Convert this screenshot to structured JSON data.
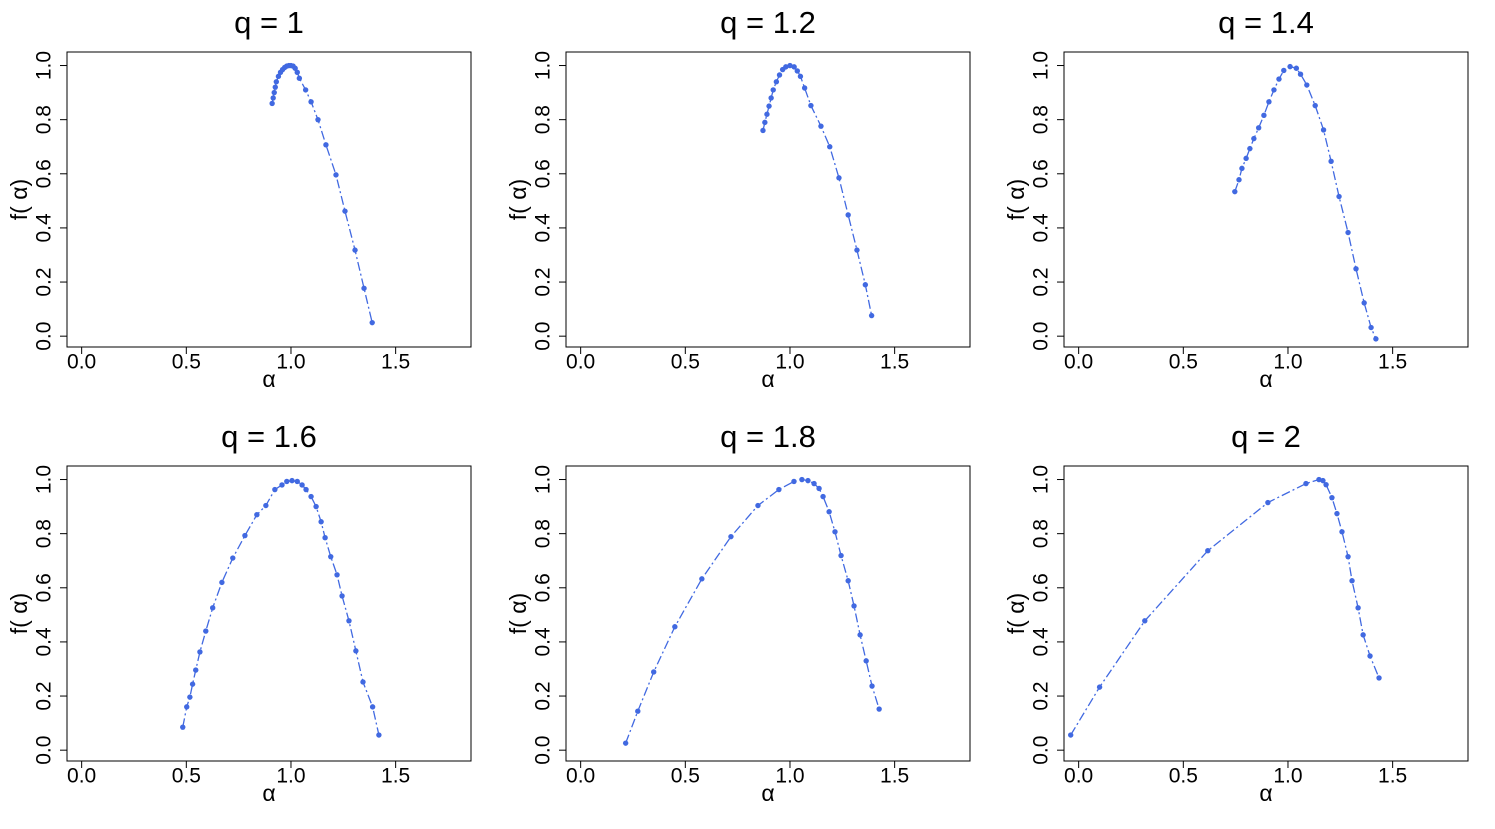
{
  "chart_data": [
    {
      "type": "scatter",
      "title": "q = 1",
      "x_label": "α",
      "y_label": "f( α)",
      "color": "#4169e1",
      "x": [
        0.91,
        0.915,
        0.92,
        0.925,
        0.93,
        0.94,
        0.95,
        0.96,
        0.97,
        0.98,
        0.99,
        1.0,
        1.01,
        1.02,
        1.03,
        1.04,
        1.07,
        1.096,
        1.129,
        1.167,
        1.215,
        1.258,
        1.306,
        1.349,
        1.388
      ],
      "values": [
        0.86,
        0.88,
        0.9,
        0.92,
        0.94,
        0.96,
        0.975,
        0.985,
        0.993,
        0.998,
        1.0,
        1.0,
        0.998,
        0.99,
        0.975,
        0.953,
        0.91,
        0.866,
        0.8,
        0.707,
        0.596,
        0.462,
        0.318,
        0.177,
        0.05
      ],
      "xlim": [
        -0.07,
        1.86
      ],
      "ylim": [
        -0.04,
        1.05
      ],
      "xticks": [
        {
          "value": 0,
          "label": "0.0"
        },
        0.5,
        {
          "value": 1,
          "label": "1.0"
        },
        1.5
      ],
      "yticks": [
        {
          "value": 0,
          "label": "0.0"
        },
        0.2,
        0.4,
        0.6,
        0.8,
        {
          "value": 1,
          "label": "1.0"
        }
      ]
    },
    {
      "type": "scatter",
      "title": "q = 1.2",
      "x_label": "α",
      "y_label": "f( α)",
      "color": "#4169e1",
      "x": [
        0.871,
        0.88,
        0.89,
        0.9,
        0.91,
        0.92,
        0.935,
        0.95,
        0.965,
        0.98,
        1.0,
        1.02,
        1.035,
        1.05,
        1.07,
        1.1,
        1.148,
        1.19,
        1.234,
        1.278,
        1.32,
        1.36,
        1.39
      ],
      "values": [
        0.76,
        0.79,
        0.82,
        0.85,
        0.88,
        0.91,
        0.94,
        0.965,
        0.985,
        0.995,
        1.0,
        0.995,
        0.98,
        0.96,
        0.917,
        0.852,
        0.776,
        0.7,
        0.585,
        0.448,
        0.318,
        0.19,
        0.076
      ],
      "xlim": [
        -0.07,
        1.86
      ],
      "ylim": [
        -0.04,
        1.05
      ],
      "xticks": [
        {
          "value": 0,
          "label": "0.0"
        },
        0.5,
        {
          "value": 1,
          "label": "1.0"
        },
        1.5
      ],
      "yticks": [
        {
          "value": 0,
          "label": "0.0"
        },
        0.2,
        0.4,
        0.6,
        0.8,
        {
          "value": 1,
          "label": "1.0"
        }
      ]
    },
    {
      "type": "scatter",
      "title": "q = 1.4",
      "x_label": "α",
      "y_label": "f( α)",
      "color": "#4169e1",
      "x": [
        0.746,
        0.766,
        0.78,
        0.8,
        0.818,
        0.837,
        0.86,
        0.885,
        0.909,
        0.933,
        0.957,
        0.98,
        1.01,
        1.04,
        1.06,
        1.09,
        1.13,
        1.17,
        1.206,
        1.244,
        1.287,
        1.325,
        1.364,
        1.397,
        1.42
      ],
      "values": [
        0.534,
        0.578,
        0.62,
        0.657,
        0.693,
        0.73,
        0.77,
        0.816,
        0.866,
        0.91,
        0.95,
        0.982,
        0.996,
        0.99,
        0.968,
        0.928,
        0.852,
        0.762,
        0.646,
        0.516,
        0.383,
        0.249,
        0.123,
        0.032,
        -0.01
      ],
      "xlim": [
        -0.07,
        1.86
      ],
      "ylim": [
        -0.04,
        1.05
      ],
      "xticks": [
        {
          "value": 0,
          "label": "0.0"
        },
        0.5,
        {
          "value": 1,
          "label": "1.0"
        },
        1.5
      ],
      "yticks": [
        {
          "value": 0,
          "label": "0.0"
        },
        0.2,
        0.4,
        0.6,
        0.8,
        {
          "value": 1,
          "label": "1.0"
        }
      ]
    },
    {
      "type": "scatter",
      "title": "q = 1.6",
      "x_label": "α",
      "y_label": "f( α)",
      "color": "#4169e1",
      "x": [
        0.483,
        0.502,
        0.517,
        0.53,
        0.545,
        0.565,
        0.593,
        0.626,
        0.67,
        0.722,
        0.78,
        0.837,
        0.88,
        0.923,
        0.957,
        0.98,
        1.005,
        1.03,
        1.053,
        1.072,
        1.096,
        1.12,
        1.144,
        1.163,
        1.19,
        1.22,
        1.244,
        1.277,
        1.31,
        1.344,
        1.39,
        1.42
      ],
      "values": [
        0.085,
        0.16,
        0.196,
        0.244,
        0.296,
        0.363,
        0.44,
        0.526,
        0.62,
        0.71,
        0.793,
        0.87,
        0.904,
        0.963,
        0.98,
        0.993,
        0.996,
        0.993,
        0.98,
        0.963,
        0.937,
        0.9,
        0.844,
        0.785,
        0.715,
        0.648,
        0.57,
        0.478,
        0.367,
        0.252,
        0.16,
        0.056
      ],
      "xlim": [
        -0.07,
        1.86
      ],
      "ylim": [
        -0.04,
        1.05
      ],
      "xticks": [
        {
          "value": 0,
          "label": "0.0"
        },
        0.5,
        {
          "value": 1,
          "label": "1.0"
        },
        1.5
      ],
      "yticks": [
        {
          "value": 0,
          "label": "0.0"
        },
        0.2,
        0.4,
        0.6,
        0.8,
        {
          "value": 1,
          "label": "1.0"
        }
      ]
    },
    {
      "type": "scatter",
      "title": "q = 1.8",
      "x_label": "α",
      "y_label": "f( α)",
      "color": "#4169e1",
      "x": [
        0.215,
        0.273,
        0.349,
        0.45,
        0.579,
        0.718,
        0.847,
        0.947,
        1.019,
        1.057,
        1.086,
        1.115,
        1.139,
        1.158,
        1.187,
        1.215,
        1.244,
        1.278,
        1.306,
        1.335,
        1.364,
        1.392,
        1.426
      ],
      "values": [
        0.026,
        0.144,
        0.289,
        0.456,
        0.633,
        0.789,
        0.904,
        0.963,
        0.993,
        1.0,
        0.996,
        0.985,
        0.967,
        0.937,
        0.881,
        0.807,
        0.719,
        0.626,
        0.533,
        0.426,
        0.33,
        0.237,
        0.152
      ],
      "xlim": [
        -0.07,
        1.86
      ],
      "ylim": [
        -0.04,
        1.05
      ],
      "xticks": [
        {
          "value": 0,
          "label": "0.0"
        },
        0.5,
        {
          "value": 1,
          "label": "1.0"
        },
        1.5
      ],
      "yticks": [
        {
          "value": 0,
          "label": "0.0"
        },
        0.2,
        0.4,
        0.6,
        0.8,
        {
          "value": 1,
          "label": "1.0"
        }
      ]
    },
    {
      "type": "scatter",
      "title": "q = 2",
      "x_label": "α",
      "y_label": "f( α)",
      "color": "#4169e1",
      "x": [
        -0.038,
        0.1,
        0.316,
        0.617,
        0.904,
        1.086,
        1.148,
        1.167,
        1.182,
        1.21,
        1.234,
        1.258,
        1.287,
        1.306,
        1.335,
        1.359,
        1.392,
        1.435
      ],
      "values": [
        0.056,
        0.233,
        0.478,
        0.737,
        0.915,
        0.985,
        1.0,
        0.996,
        0.981,
        0.933,
        0.874,
        0.807,
        0.715,
        0.626,
        0.526,
        0.426,
        0.348,
        0.267
      ],
      "xlim": [
        -0.07,
        1.86
      ],
      "ylim": [
        -0.04,
        1.05
      ],
      "xticks": [
        {
          "value": 0,
          "label": "0.0"
        },
        0.5,
        {
          "value": 1,
          "label": "1.0"
        },
        1.5
      ],
      "yticks": [
        {
          "value": 0,
          "label": "0.0"
        },
        0.2,
        0.4,
        0.6,
        0.8,
        {
          "value": 1,
          "label": "1.0"
        }
      ]
    }
  ]
}
